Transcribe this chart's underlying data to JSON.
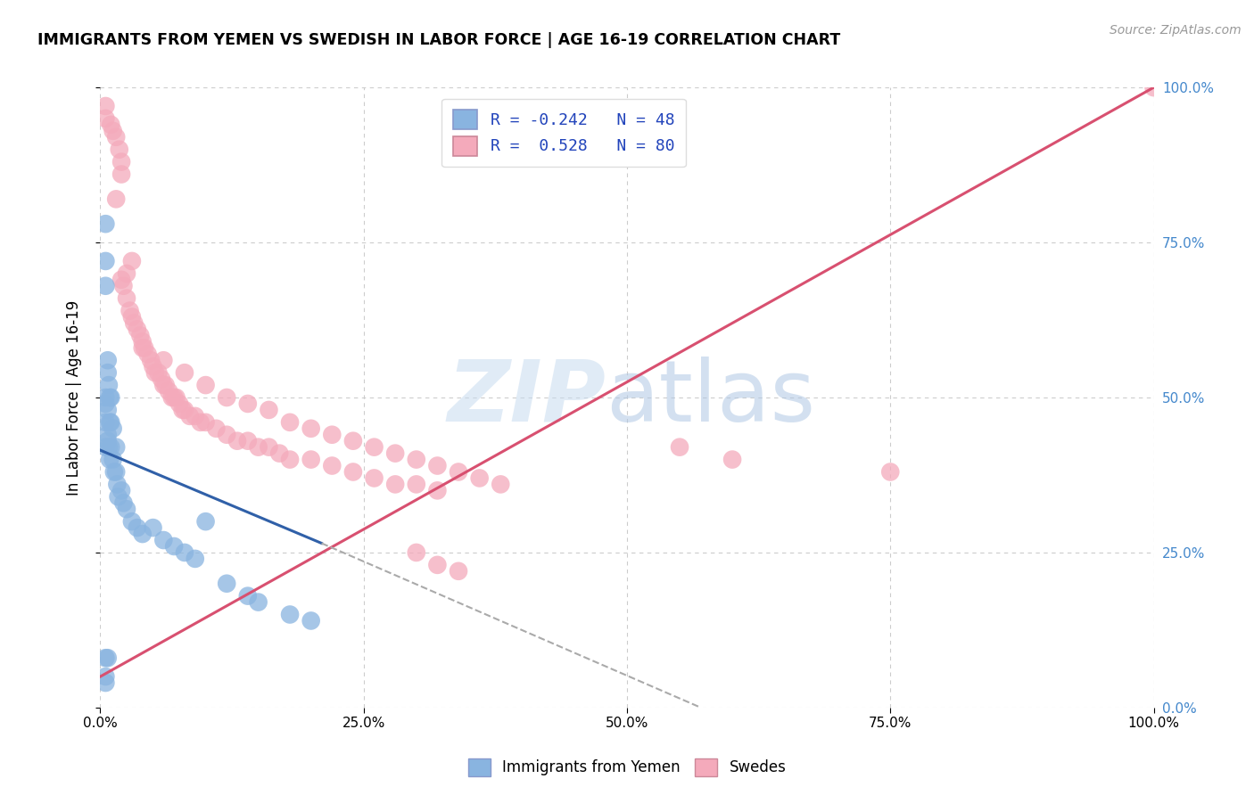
{
  "title": "IMMIGRANTS FROM YEMEN VS SWEDISH IN LABOR FORCE | AGE 16-19 CORRELATION CHART",
  "source": "Source: ZipAtlas.com",
  "ylabel": "In Labor Force | Age 16-19",
  "xlim": [
    0,
    1
  ],
  "ylim": [
    0,
    1
  ],
  "xtick_vals": [
    0.0,
    0.25,
    0.5,
    0.75,
    1.0
  ],
  "xtick_labels": [
    "0.0%",
    "25.0%",
    "50.0%",
    "75.0%",
    "100.0%"
  ],
  "ytick_vals": [
    0.0,
    0.25,
    0.5,
    0.75,
    1.0
  ],
  "ytick_labels_right": [
    "0.0%",
    "25.0%",
    "50.0%",
    "75.0%",
    "100.0%"
  ],
  "legend_R1": "-0.242",
  "legend_N1": "48",
  "legend_R2": "0.528",
  "legend_N2": "80",
  "blue_color": "#89B4E0",
  "pink_color": "#F4AABB",
  "blue_line_color": "#3060A8",
  "pink_line_color": "#D85070",
  "blue_line_x": [
    0.0,
    0.21
  ],
  "blue_line_y": [
    0.415,
    0.265
  ],
  "dashed_line_x": [
    0.21,
    0.57
  ],
  "dashed_line_y": [
    0.265,
    0.0
  ],
  "pink_line_x": [
    0.0,
    1.0
  ],
  "pink_line_y": [
    0.05,
    1.0
  ],
  "yemen_x": [
    0.005,
    0.005,
    0.005,
    0.005,
    0.005,
    0.005,
    0.005,
    0.007,
    0.007,
    0.007,
    0.007,
    0.007,
    0.008,
    0.008,
    0.009,
    0.009,
    0.009,
    0.01,
    0.01,
    0.01,
    0.012,
    0.012,
    0.013,
    0.015,
    0.015,
    0.016,
    0.017,
    0.02,
    0.022,
    0.025,
    0.03,
    0.035,
    0.04,
    0.05,
    0.06,
    0.07,
    0.08,
    0.09,
    0.12,
    0.14,
    0.15,
    0.18,
    0.2,
    0.005,
    0.005,
    0.005,
    0.007,
    0.1
  ],
  "yemen_y": [
    0.78,
    0.72,
    0.68,
    0.5,
    0.49,
    0.46,
    0.42,
    0.56,
    0.54,
    0.48,
    0.44,
    0.43,
    0.52,
    0.42,
    0.5,
    0.46,
    0.4,
    0.5,
    0.46,
    0.42,
    0.45,
    0.4,
    0.38,
    0.42,
    0.38,
    0.36,
    0.34,
    0.35,
    0.33,
    0.32,
    0.3,
    0.29,
    0.28,
    0.29,
    0.27,
    0.26,
    0.25,
    0.24,
    0.2,
    0.18,
    0.17,
    0.15,
    0.14,
    0.08,
    0.05,
    0.04,
    0.08,
    0.3
  ],
  "sweden_x": [
    0.005,
    0.005,
    0.01,
    0.012,
    0.015,
    0.015,
    0.018,
    0.02,
    0.02,
    0.022,
    0.025,
    0.028,
    0.03,
    0.032,
    0.035,
    0.038,
    0.04,
    0.042,
    0.045,
    0.048,
    0.05,
    0.052,
    0.055,
    0.058,
    0.06,
    0.062,
    0.065,
    0.068,
    0.07,
    0.072,
    0.075,
    0.078,
    0.08,
    0.085,
    0.09,
    0.095,
    0.1,
    0.11,
    0.12,
    0.13,
    0.14,
    0.15,
    0.16,
    0.17,
    0.18,
    0.2,
    0.22,
    0.24,
    0.26,
    0.28,
    0.3,
    0.32,
    0.04,
    0.06,
    0.08,
    0.1,
    0.12,
    0.14,
    0.16,
    0.18,
    0.2,
    0.22,
    0.24,
    0.26,
    0.28,
    0.3,
    0.32,
    0.34,
    0.36,
    0.38,
    0.02,
    0.025,
    0.03,
    0.3,
    0.32,
    0.34,
    0.55,
    0.6,
    0.75,
    1.0
  ],
  "sweden_y": [
    0.97,
    0.95,
    0.94,
    0.93,
    0.92,
    0.82,
    0.9,
    0.88,
    0.86,
    0.68,
    0.66,
    0.64,
    0.63,
    0.62,
    0.61,
    0.6,
    0.59,
    0.58,
    0.57,
    0.56,
    0.55,
    0.54,
    0.54,
    0.53,
    0.52,
    0.52,
    0.51,
    0.5,
    0.5,
    0.5,
    0.49,
    0.48,
    0.48,
    0.47,
    0.47,
    0.46,
    0.46,
    0.45,
    0.44,
    0.43,
    0.43,
    0.42,
    0.42,
    0.41,
    0.4,
    0.4,
    0.39,
    0.38,
    0.37,
    0.36,
    0.36,
    0.35,
    0.58,
    0.56,
    0.54,
    0.52,
    0.5,
    0.49,
    0.48,
    0.46,
    0.45,
    0.44,
    0.43,
    0.42,
    0.41,
    0.4,
    0.39,
    0.38,
    0.37,
    0.36,
    0.69,
    0.7,
    0.72,
    0.25,
    0.23,
    0.22,
    0.42,
    0.4,
    0.38,
    1.0
  ]
}
